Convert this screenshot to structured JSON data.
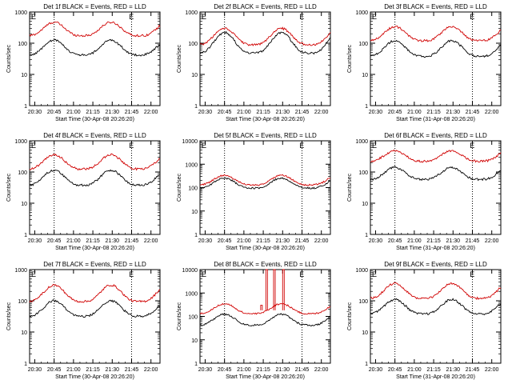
{
  "chart_data": [
    {
      "type": "line",
      "title": "Det 1f BLACK = Events, RED = LLD",
      "xlabel": "Start Time (30-Apr-08 20:26:20)",
      "ylabel": "Counts/sec",
      "yscale": "log",
      "ylim": [
        1,
        1000
      ],
      "xticks": [
        "20:30",
        "20:45",
        "21:00",
        "21:15",
        "21:30",
        "21:45",
        "22:00"
      ],
      "yticks": [
        "1",
        "10",
        "100",
        "1000"
      ],
      "markers": [
        "E",
        "E"
      ],
      "series": [
        {
          "color": "#d00000",
          "base": 175,
          "peak": 470
        },
        {
          "color": "#000000",
          "base": 42,
          "peak": 125
        }
      ]
    },
    {
      "type": "line",
      "title": "Det 2f BLACK = Events, RED = LLD",
      "xlabel": "Start Time (30-Apr-08 20:26:20)",
      "ylabel": "Counts/sec",
      "yscale": "log",
      "ylim": [
        1,
        1000
      ],
      "xticks": [
        "20:30",
        "20:45",
        "21:00",
        "21:15",
        "21:30",
        "21:45",
        "22:00"
      ],
      "yticks": [
        "1",
        "10",
        "100",
        "1000"
      ],
      "markers": [
        "E",
        "E"
      ],
      "series": [
        {
          "color": "#d00000",
          "base": 90,
          "peak": 300
        },
        {
          "color": "#000000",
          "base": 48,
          "peak": 220
        }
      ]
    },
    {
      "type": "line",
      "title": "Det 3f BLACK = Events, RED = LLD",
      "xlabel": "Start Time (31-Apr-08 20:26:20)",
      "ylabel": "Counts/sec",
      "yscale": "log",
      "ylim": [
        1,
        1000
      ],
      "xticks": [
        "20:30",
        "20:45",
        "21:00",
        "21:15",
        "21:30",
        "21:45",
        "22:00"
      ],
      "yticks": [
        "1",
        "10",
        "100",
        "1000"
      ],
      "markers": [
        "E",
        "E"
      ],
      "series": [
        {
          "color": "#d00000",
          "base": 120,
          "peak": 340
        },
        {
          "color": "#000000",
          "base": 38,
          "peak": 120
        }
      ]
    },
    {
      "type": "line",
      "title": "Det 4f BLACK = Events, RED = LLD",
      "xlabel": "Start Time (30-Apr-08 20:26:20)",
      "ylabel": "Counts/sec",
      "yscale": "log",
      "ylim": [
        1,
        1000
      ],
      "xticks": [
        "20:30",
        "20:45",
        "21:00",
        "21:15",
        "21:30",
        "21:45",
        "22:00"
      ],
      "yticks": [
        "1",
        "10",
        "100",
        "1000"
      ],
      "markers": [
        "E",
        "E"
      ],
      "series": [
        {
          "color": "#d00000",
          "base": 125,
          "peak": 360
        },
        {
          "color": "#000000",
          "base": 38,
          "peak": 115
        }
      ]
    },
    {
      "type": "line",
      "title": "Det 5f BLACK = Events, RED = LLD",
      "xlabel": "Start Time (30-Apr-08 20:26:20)",
      "ylabel": "Counts/sec",
      "yscale": "log",
      "ylim": [
        1,
        10000
      ],
      "xticks": [
        "20:30",
        "20:45",
        "21:00",
        "21:15",
        "21:30",
        "21:45",
        "22:00"
      ],
      "yticks": [
        "1",
        "10",
        "100",
        "1000",
        "10000"
      ],
      "markers": [
        "E",
        "E"
      ],
      "series": [
        {
          "color": "#d00000",
          "base": 130,
          "peak": 340
        },
        {
          "color": "#000000",
          "base": 95,
          "peak": 255
        }
      ]
    },
    {
      "type": "line",
      "title": "Det 6f BLACK = Events, RED = LLD",
      "xlabel": "Start Time (31-Apr-08 20:26:20)",
      "ylabel": "Counts/sec",
      "yscale": "log",
      "ylim": [
        1,
        1000
      ],
      "xticks": [
        "20:30",
        "20:45",
        "21:00",
        "21:15",
        "21:30",
        "21:45",
        "22:00"
      ],
      "yticks": [
        "1",
        "10",
        "100",
        "1000"
      ],
      "markers": [
        "E",
        "E"
      ],
      "series": [
        {
          "color": "#d00000",
          "base": 220,
          "peak": 480
        },
        {
          "color": "#000000",
          "base": 58,
          "peak": 140
        }
      ]
    },
    {
      "type": "line",
      "title": "Det 7f BLACK = Events, RED = LLD",
      "xlabel": "Start Time (30-Apr-08 20:26:20)",
      "ylabel": "Counts/sec",
      "yscale": "log",
      "ylim": [
        1,
        1000
      ],
      "xticks": [
        "20:30",
        "20:45",
        "21:00",
        "21:15",
        "21:30",
        "21:45",
        "22:00"
      ],
      "yticks": [
        "1",
        "10",
        "100",
        "1000"
      ],
      "markers": [
        "E",
        "E"
      ],
      "series": [
        {
          "color": "#d00000",
          "base": 95,
          "peak": 320
        },
        {
          "color": "#000000",
          "base": 32,
          "peak": 100
        }
      ]
    },
    {
      "type": "line",
      "title": "Det 8f BLACK = Events, RED = LLD",
      "xlabel": "Start Time (30-Apr-08 20:26:20)",
      "ylabel": "Counts/sec",
      "yscale": "log",
      "ylim": [
        1,
        10000
      ],
      "xticks": [
        "20:30",
        "20:45",
        "21:00",
        "21:15",
        "21:30",
        "21:45",
        "22:00"
      ],
      "yticks": [
        "1",
        "10",
        "100",
        "1000",
        "10000"
      ],
      "markers": [
        "E",
        "E"
      ],
      "series": [
        {
          "color": "#d00000",
          "base": 130,
          "peak": 350,
          "spikes": [
            {
              "time": "21:13",
              "value": 300
            },
            {
              "time": "21:17",
              "value": 10000
            },
            {
              "time": "21:23",
              "value": 10000
            },
            {
              "time": "21:30",
              "value": 10000
            }
          ]
        },
        {
          "color": "#000000",
          "base": 42,
          "peak": 125
        }
      ]
    },
    {
      "type": "line",
      "title": "Det 9f BLACK = Events, RED = LLD",
      "xlabel": "Start Time (31-Apr-08 20:26:20)",
      "ylabel": "Counts/sec",
      "yscale": "log",
      "ylim": [
        1,
        1000
      ],
      "xticks": [
        "20:30",
        "20:45",
        "21:00",
        "21:15",
        "21:30",
        "21:45",
        "22:00"
      ],
      "yticks": [
        "1",
        "10",
        "100",
        "1000"
      ],
      "markers": [
        "E",
        "E"
      ],
      "series": [
        {
          "color": "#d00000",
          "base": 120,
          "peak": 360
        },
        {
          "color": "#000000",
          "base": 38,
          "peak": 110
        }
      ]
    }
  ]
}
